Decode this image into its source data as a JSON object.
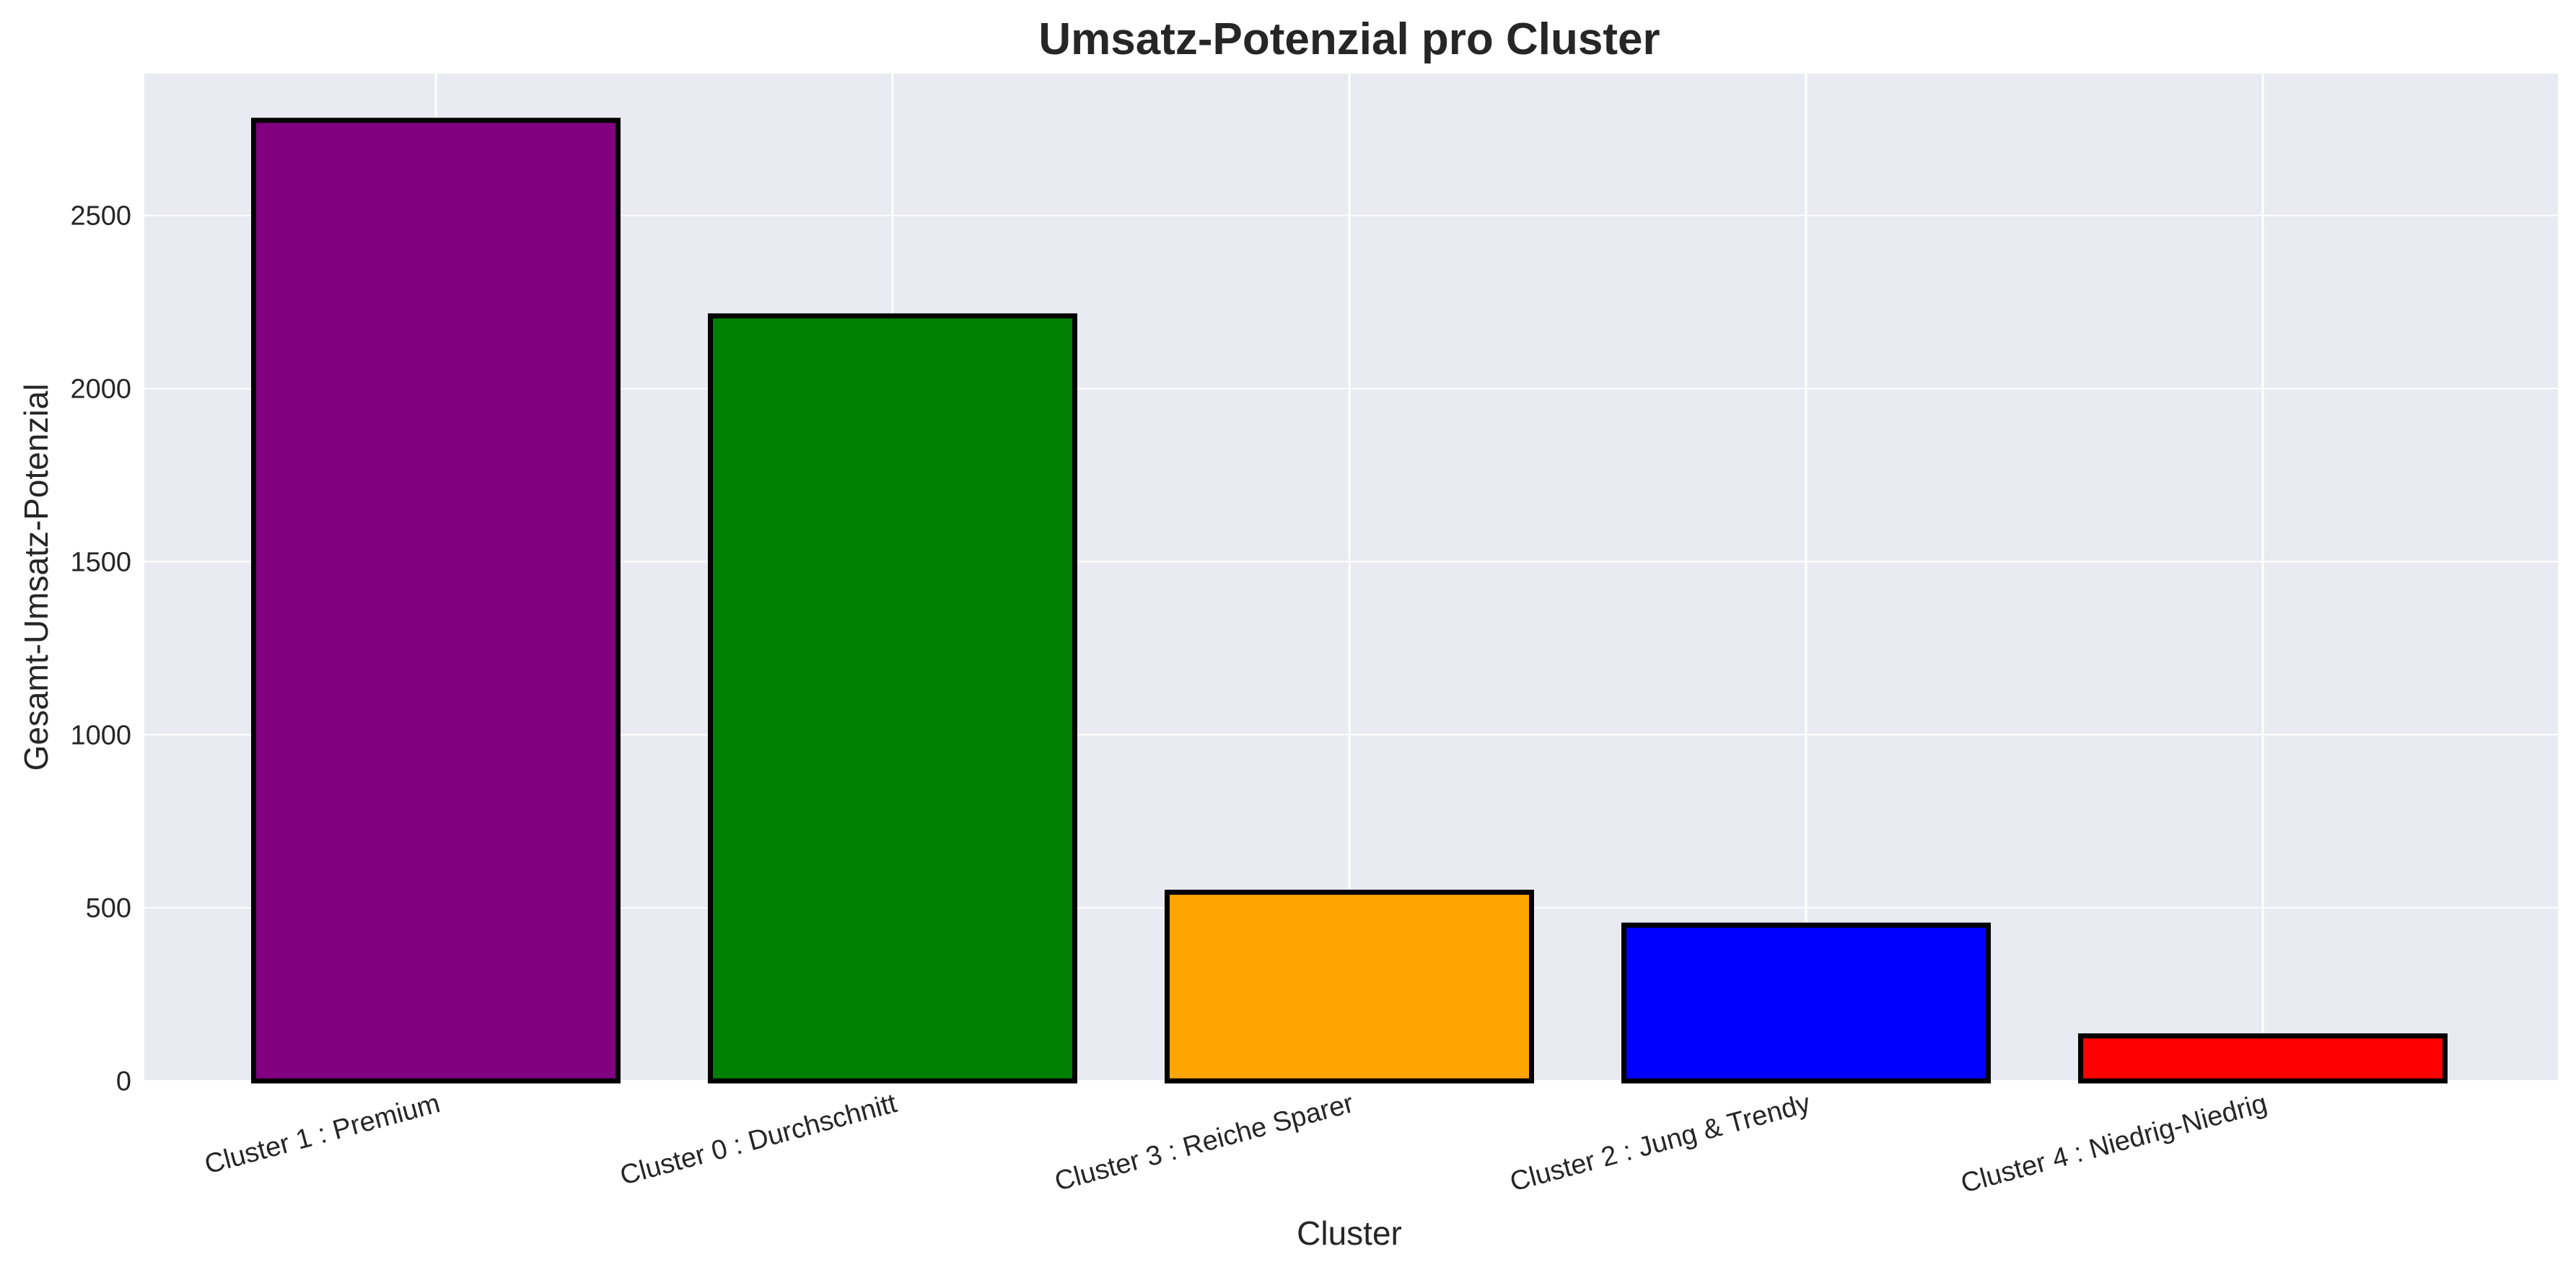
{
  "chart_data": {
    "type": "bar",
    "title": "Umsatz-Potenzial pro Cluster",
    "xlabel": "Cluster",
    "ylabel": "Gesamt-Umsatz-Potenzial",
    "categories": [
      "Cluster 1 : Premium",
      "Cluster 0 : Durchschnitt",
      "Cluster 3 : Reiche Sparer",
      "Cluster 2 : Jung & Trendy",
      "Cluster 4 : Niedrig-Niedrig"
    ],
    "values": [
      2775,
      2210,
      545,
      450,
      130
    ],
    "colors": [
      "#800080",
      "#008000",
      "#FFA500",
      "#0000FF",
      "#FF0000"
    ],
    "edge_color": "#000000",
    "ylim": [
      0,
      2910
    ],
    "yticks": [
      0,
      500,
      1000,
      1500,
      2000,
      2500
    ],
    "grid": true,
    "background": "#EAEAF2"
  }
}
